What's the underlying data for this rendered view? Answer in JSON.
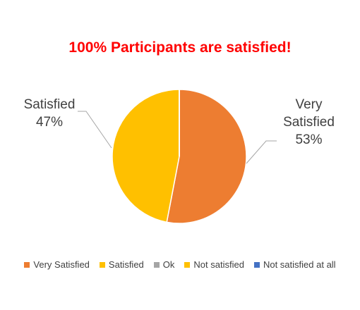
{
  "chart_data": {
    "type": "pie",
    "title": "100% Participants are satisfied!",
    "categories": [
      "Very Satisfied",
      "Satisfied",
      "Ok",
      "Not satisfied",
      "Not satisfied at all"
    ],
    "values": [
      53,
      47,
      0,
      0,
      0
    ],
    "value_labels": [
      "53%",
      "47%",
      null,
      null,
      null
    ],
    "colors": [
      "#ED7D31",
      "#FFC000",
      "#A5A5A5",
      "#FFC000",
      "#4472C4"
    ],
    "legend": "bottom"
  }
}
